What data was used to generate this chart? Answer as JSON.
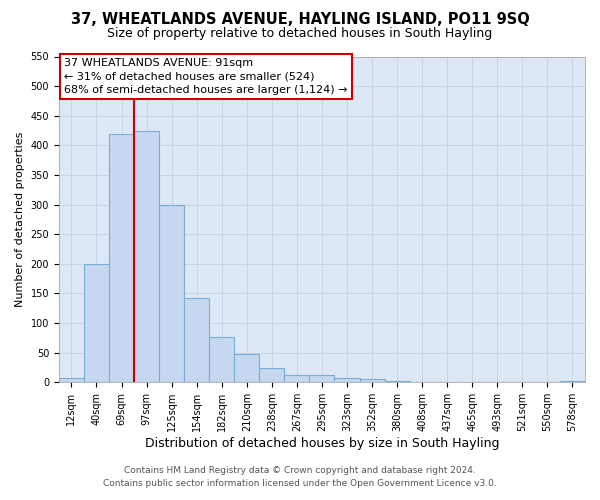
{
  "title": "37, WHEATLANDS AVENUE, HAYLING ISLAND, PO11 9SQ",
  "subtitle": "Size of property relative to detached houses in South Hayling",
  "xlabel": "Distribution of detached houses by size in South Hayling",
  "ylabel": "Number of detached properties",
  "bar_labels": [
    "12sqm",
    "40sqm",
    "69sqm",
    "97sqm",
    "125sqm",
    "154sqm",
    "182sqm",
    "210sqm",
    "238sqm",
    "267sqm",
    "295sqm",
    "323sqm",
    "352sqm",
    "380sqm",
    "408sqm",
    "437sqm",
    "465sqm",
    "493sqm",
    "521sqm",
    "550sqm",
    "578sqm"
  ],
  "bar_values": [
    8,
    200,
    420,
    425,
    300,
    143,
    77,
    48,
    25,
    13,
    13,
    8,
    5,
    3,
    0,
    0,
    0,
    0,
    0,
    0,
    3
  ],
  "bar_color": "#c5d8ef",
  "bar_edge_color": "#7aadd4",
  "bar_edge_width": 0.8,
  "vline_color": "#cc0000",
  "ylim": [
    0,
    550
  ],
  "yticks": [
    0,
    50,
    100,
    150,
    200,
    250,
    300,
    350,
    400,
    450,
    500,
    550
  ],
  "annotation_title": "37 WHEATLANDS AVENUE: 91sqm",
  "annotation_line1": "← 31% of detached houses are smaller (524)",
  "annotation_line2": "68% of semi-detached houses are larger (1,124) →",
  "annotation_box_facecolor": "#ffffff",
  "annotation_box_edgecolor": "#cc0000",
  "grid_color": "#c8d4e6",
  "plot_bg_color": "#dce8f5",
  "fig_bg_color": "#ffffff",
  "footer_line1": "Contains HM Land Registry data © Crown copyright and database right 2024.",
  "footer_line2": "Contains public sector information licensed under the Open Government Licence v3.0.",
  "title_fontsize": 10.5,
  "subtitle_fontsize": 9,
  "xlabel_fontsize": 9,
  "ylabel_fontsize": 8,
  "tick_fontsize": 7,
  "annot_fontsize": 8,
  "footer_fontsize": 6.5,
  "vline_x": 2.5
}
